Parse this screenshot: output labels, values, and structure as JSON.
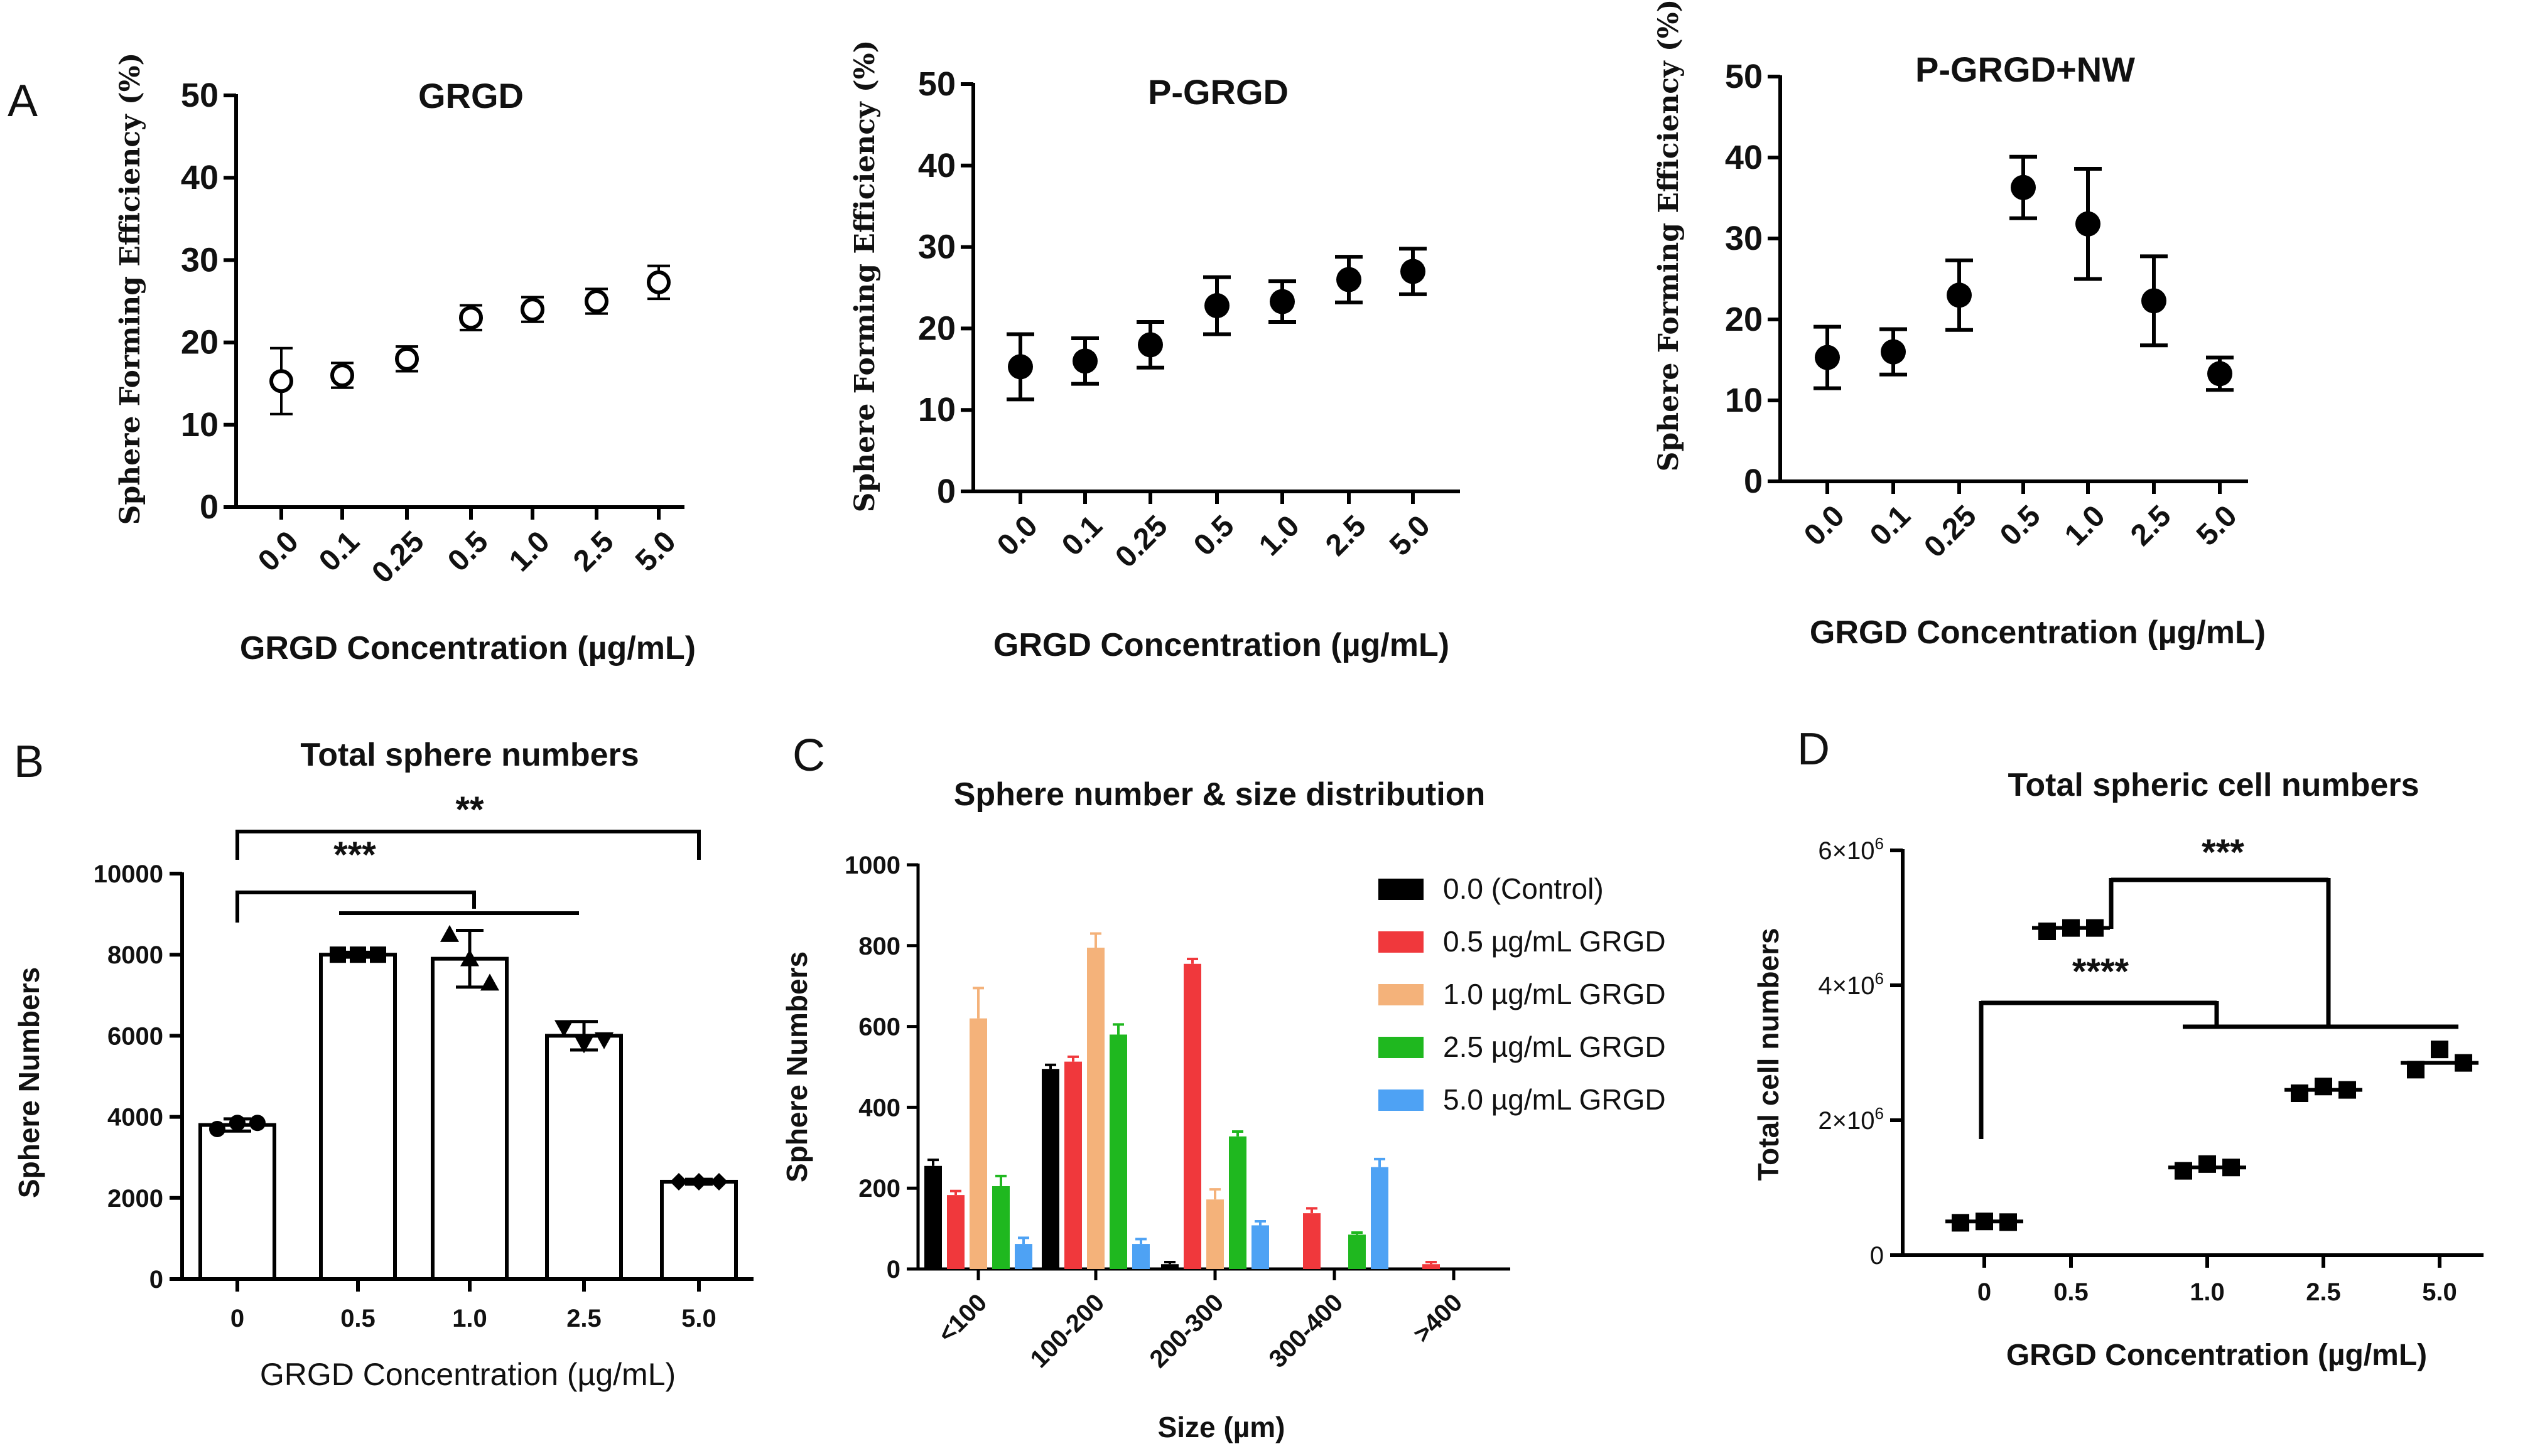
{
  "panel_letters": [
    "A",
    "B",
    "C",
    "D"
  ],
  "chart_data": [
    {
      "id": "A1",
      "type": "scatter",
      "marker": "open-circle",
      "title": "GRGD",
      "xlabel": "GRGD Concentration (µg/mL)",
      "ylabel": "Sphere Forming Efficiency (%)",
      "categories": [
        "0.0",
        "0.1",
        "0.25",
        "0.5",
        "1.0",
        "2.5",
        "5.0"
      ],
      "values": [
        15.3,
        16.0,
        18.0,
        23.0,
        24.0,
        25.0,
        27.3
      ],
      "errors": [
        4.0,
        1.5,
        1.5,
        1.5,
        1.5,
        1.5,
        2.0
      ],
      "ylim": [
        0,
        50
      ],
      "yticks": [
        "0",
        "10",
        "20",
        "30",
        "40",
        "50"
      ]
    },
    {
      "id": "A2",
      "type": "scatter",
      "marker": "filled-circle",
      "title": "P-GRGD",
      "xlabel": "GRGD Concentration (µg/mL)",
      "ylabel": "Sphere Forming Efficiency (%)",
      "categories": [
        "0.0",
        "0.1",
        "0.25",
        "0.5",
        "1.0",
        "2.5",
        "5.0"
      ],
      "values": [
        15.3,
        16.0,
        18.0,
        22.8,
        23.3,
        26.0,
        27.0
      ],
      "errors": [
        4.0,
        2.8,
        2.8,
        3.5,
        2.5,
        2.8,
        2.8
      ],
      "ylim": [
        0,
        50
      ],
      "yticks": [
        "0",
        "10",
        "20",
        "30",
        "40",
        "50"
      ]
    },
    {
      "id": "A3",
      "type": "scatter",
      "marker": "filled-circle",
      "title": "P-GRGD+NW",
      "xlabel": "GRGD Concentration (µg/mL)",
      "ylabel": "Sphere Forming Efficiency (%)",
      "categories": [
        "0.0",
        "0.1",
        "0.25",
        "0.5",
        "1.0",
        "2.5",
        "5.0"
      ],
      "values": [
        15.3,
        16.0,
        23.0,
        36.3,
        31.8,
        22.3,
        13.3
      ],
      "errors": [
        3.8,
        2.8,
        4.3,
        3.8,
        6.8,
        5.5,
        2.0
      ],
      "ylim": [
        0,
        50
      ],
      "yticks": [
        "0",
        "10",
        "20",
        "30",
        "40",
        "50"
      ]
    },
    {
      "id": "B",
      "type": "bar",
      "title": "Total sphere numbers",
      "xlabel": "GRGD Concentration (µg/mL)",
      "ylabel": "Sphere Numbers",
      "categories": [
        "0",
        "0.5",
        "1.0",
        "2.5",
        "5.0"
      ],
      "values": [
        3800,
        8000,
        7900,
        6000,
        2400
      ],
      "errors": [
        150,
        60,
        700,
        350,
        60
      ],
      "points": [
        [
          3700,
          3850,
          3850
        ],
        [
          8000,
          8000,
          8000
        ],
        [
          8500,
          7900,
          7300
        ],
        [
          6200,
          5800,
          5900
        ],
        [
          2400,
          2400,
          2400
        ]
      ],
      "ylim": [
        0,
        10000
      ],
      "yticks": [
        "0",
        "2000",
        "4000",
        "6000",
        "8000",
        "10000"
      ],
      "annotations": [
        "***",
        "**"
      ]
    },
    {
      "id": "C",
      "type": "bar",
      "title": "Sphere number & size distribution",
      "xlabel": "Size (µm)",
      "ylabel": "Sphere Numbers",
      "categories": [
        "<100",
        "100-200",
        "200-300",
        "300-400",
        ">400"
      ],
      "series": [
        {
          "name": "0.0 (Control)",
          "color": "#000000",
          "values": [
            255,
            495,
            12,
            0,
            0
          ],
          "errors": [
            15,
            10,
            5,
            0,
            0
          ]
        },
        {
          "name": "0.5 µg/mL GRGD",
          "color": "#f0383c",
          "values": [
            183,
            513,
            755,
            138,
            12
          ],
          "errors": [
            10,
            12,
            12,
            12,
            5
          ]
        },
        {
          "name": "1.0 µg/mL GRGD",
          "color": "#f4b27a",
          "values": [
            620,
            795,
            172,
            0,
            0
          ],
          "errors": [
            75,
            35,
            25,
            0,
            0
          ]
        },
        {
          "name": "2.5 µg/mL GRGD",
          "color": "#1fb81f",
          "values": [
            205,
            580,
            328,
            85,
            0
          ],
          "errors": [
            25,
            25,
            12,
            5,
            0
          ]
        },
        {
          "name": "5.0 µg/mL GRGD",
          "color": "#4ea2f4",
          "values": [
            62,
            62,
            108,
            252,
            0
          ],
          "errors": [
            15,
            12,
            10,
            20,
            0
          ]
        }
      ],
      "ylim": [
        0,
        1000
      ],
      "yticks": [
        "0",
        "200",
        "400",
        "600",
        "800",
        "1000"
      ]
    },
    {
      "id": "D",
      "type": "scatter",
      "marker": "filled-square",
      "title": "Total spheric cell numbers",
      "xlabel": "GRGD Concentration (µg/mL)",
      "ylabel": "Total cell numbers",
      "categories": [
        "0",
        "0.5",
        "1.0",
        "2.5",
        "5.0"
      ],
      "means": [
        500000,
        4850000,
        1300000,
        2450000,
        2850000
      ],
      "points": [
        [
          480000,
          500000,
          490000
        ],
        [
          4800000,
          4850000,
          4850000
        ],
        [
          1250000,
          1350000,
          1300000
        ],
        [
          2400000,
          2500000,
          2450000
        ],
        [
          2750000,
          3050000,
          2850000
        ]
      ],
      "ylim": [
        0,
        6000000
      ],
      "yticks": [
        {
          "mant": "0",
          "exp": ""
        },
        {
          "mant": "2×10",
          "exp": "6"
        },
        {
          "mant": "4×10",
          "exp": "6"
        },
        {
          "mant": "6×10",
          "exp": "6"
        }
      ],
      "annotations": [
        "****",
        "***"
      ]
    }
  ]
}
